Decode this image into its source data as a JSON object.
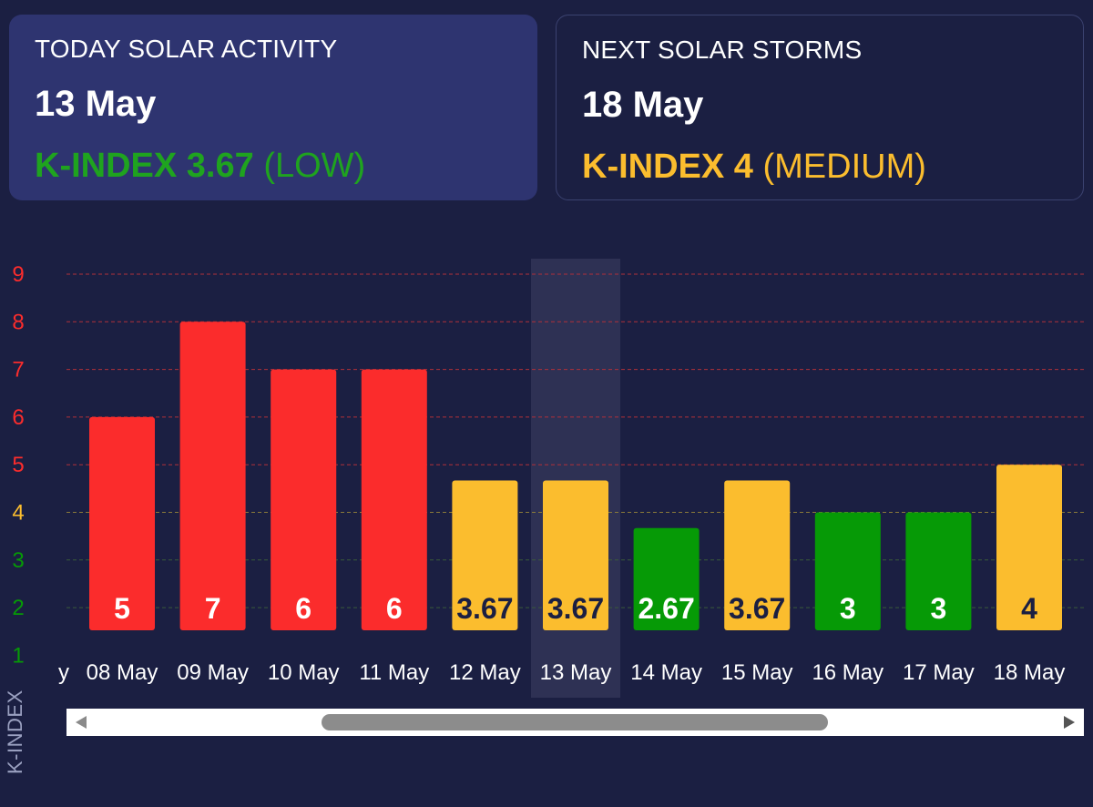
{
  "cards": {
    "today": {
      "title": "TODAY SOLAR ACTIVITY",
      "date": "13 May",
      "k_label": "K-INDEX 3.67",
      "level": "(LOW)",
      "color": "#1fa31f"
    },
    "next": {
      "title": "NEXT SOLAR STORMS",
      "date": "18 May",
      "k_label": "K-INDEX 4",
      "level": "(MEDIUM)",
      "color": "#fbbd2e"
    }
  },
  "chart_data": {
    "type": "bar",
    "ylabel": "K-INDEX",
    "ylim": [
      1,
      9
    ],
    "yticks": [
      1,
      2,
      3,
      4,
      5,
      6,
      7,
      8,
      9
    ],
    "categories": [
      "08 May",
      "09 May",
      "10 May",
      "11 May",
      "12 May",
      "13 May",
      "14 May",
      "15 May",
      "16 May",
      "17 May",
      "18 May"
    ],
    "values": [
      5,
      7,
      6,
      6,
      3.67,
      3.67,
      2.67,
      3.67,
      3,
      3,
      4
    ],
    "value_labels": [
      "5",
      "7",
      "6",
      "6",
      "3.67",
      "3.67",
      "2.67",
      "3.67",
      "3",
      "3",
      "4"
    ],
    "highlighted_category": "13 May",
    "partial_left_label": "y",
    "colors": {
      "high": "#fb2c2c",
      "medium": "#fbbd2e",
      "low": "#069a06",
      "grid_high": "#b0303a",
      "grid_medium": "#8a7a3a",
      "grid_low": "#3b5a3b"
    }
  }
}
